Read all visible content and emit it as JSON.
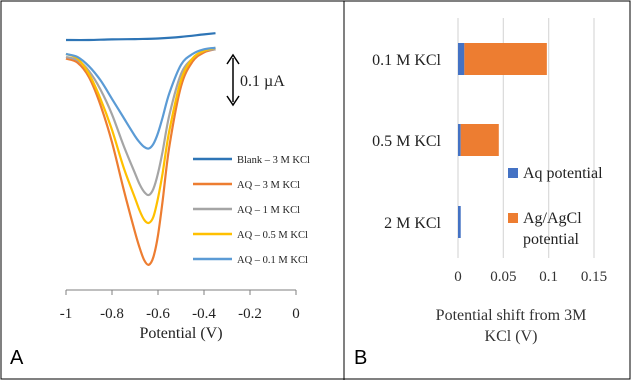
{
  "panel_a": {
    "label": "A",
    "scale_bar_label": "0.1 µA",
    "chart_data": {
      "type": "line",
      "xlabel": "Potential (V)",
      "xlim": [
        -1,
        0
      ],
      "xticks": [
        "-1",
        "-0.8",
        "-0.6",
        "-0.4",
        "-0.2",
        "0"
      ],
      "y_units": "relative current (µA)",
      "legend_position": "right",
      "series": [
        {
          "name": "Blank – 3 M KCl",
          "color": "#2E75B6",
          "x": [
            -1,
            -0.9,
            -0.8,
            -0.7,
            -0.6,
            -0.5,
            -0.4,
            -0.35
          ],
          "y": [
            0,
            0,
            0.002,
            0.003,
            0.005,
            0.01,
            0.018,
            0.022
          ]
        },
        {
          "name": "AQ – 3 M KCl",
          "color": "#ED7D31",
          "x": [
            -1,
            -0.95,
            -0.9,
            -0.85,
            -0.8,
            -0.75,
            -0.7,
            -0.68,
            -0.66,
            -0.64,
            -0.62,
            -0.6,
            -0.58,
            -0.55,
            -0.5,
            -0.45,
            -0.4,
            -0.35
          ],
          "y": [
            -0.06,
            -0.073,
            -0.12,
            -0.21,
            -0.33,
            -0.48,
            -0.62,
            -0.67,
            -0.71,
            -0.725,
            -0.7,
            -0.63,
            -0.52,
            -0.34,
            -0.15,
            -0.07,
            -0.04,
            -0.03
          ]
        },
        {
          "name": "AQ – 1 M KCl",
          "color": "#A5A5A5",
          "x": [
            -1,
            -0.95,
            -0.9,
            -0.85,
            -0.8,
            -0.75,
            -0.7,
            -0.68,
            -0.66,
            -0.64,
            -0.62,
            -0.6,
            -0.58,
            -0.55,
            -0.5,
            -0.45,
            -0.4,
            -0.35
          ],
          "y": [
            -0.055,
            -0.065,
            -0.1,
            -0.16,
            -0.24,
            -0.34,
            -0.43,
            -0.465,
            -0.49,
            -0.5,
            -0.48,
            -0.43,
            -0.36,
            -0.24,
            -0.11,
            -0.06,
            -0.035,
            -0.03
          ]
        },
        {
          "name": "AQ – 0.5 M KCl",
          "color": "#FFC000",
          "x": [
            -1,
            -0.95,
            -0.9,
            -0.85,
            -0.8,
            -0.75,
            -0.7,
            -0.68,
            -0.66,
            -0.64,
            -0.62,
            -0.6,
            -0.58,
            -0.55,
            -0.5,
            -0.45,
            -0.4,
            -0.35
          ],
          "y": [
            -0.045,
            -0.06,
            -0.11,
            -0.19,
            -0.29,
            -0.41,
            -0.51,
            -0.55,
            -0.58,
            -0.59,
            -0.57,
            -0.51,
            -0.43,
            -0.29,
            -0.13,
            -0.06,
            -0.035,
            -0.025
          ]
        },
        {
          "name": "AQ – 0.1 M KCl",
          "color": "#5B9BD5",
          "x": [
            -1,
            -0.95,
            -0.9,
            -0.85,
            -0.8,
            -0.75,
            -0.7,
            -0.68,
            -0.66,
            -0.64,
            -0.62,
            -0.6,
            -0.58,
            -0.55,
            -0.5,
            -0.45,
            -0.4,
            -0.35
          ],
          "y": [
            -0.045,
            -0.055,
            -0.085,
            -0.13,
            -0.19,
            -0.25,
            -0.31,
            -0.33,
            -0.345,
            -0.35,
            -0.335,
            -0.3,
            -0.25,
            -0.17,
            -0.08,
            -0.045,
            -0.03,
            -0.025
          ]
        }
      ]
    }
  },
  "panel_b": {
    "label": "B",
    "chart_data": {
      "type": "bar",
      "orientation": "horizontal",
      "stacked": true,
      "categories": [
        "0.1 M KCl",
        "0.5 M KCl",
        "2 M KCl"
      ],
      "xlabel": "Potential shift from 3M KCl (V)",
      "xlabel_lines": [
        "Potential shift from 3M",
        "KCl (V)"
      ],
      "xlim": [
        0,
        0.15
      ],
      "xticks": [
        "0",
        "0.05",
        "0.1",
        "0.15"
      ],
      "grid": true,
      "legend_position": "right",
      "series": [
        {
          "name": "Aq potential",
          "name_lines": [
            "Aq potential"
          ],
          "color": "#4472C4",
          "values": [
            0.007,
            0.003,
            0.003
          ]
        },
        {
          "name": "Ag/AgCl potential",
          "name_lines": [
            "Ag/AgCl",
            "potential"
          ],
          "color": "#ED7D31",
          "values": [
            0.091,
            0.042,
            0.0
          ]
        }
      ]
    }
  }
}
